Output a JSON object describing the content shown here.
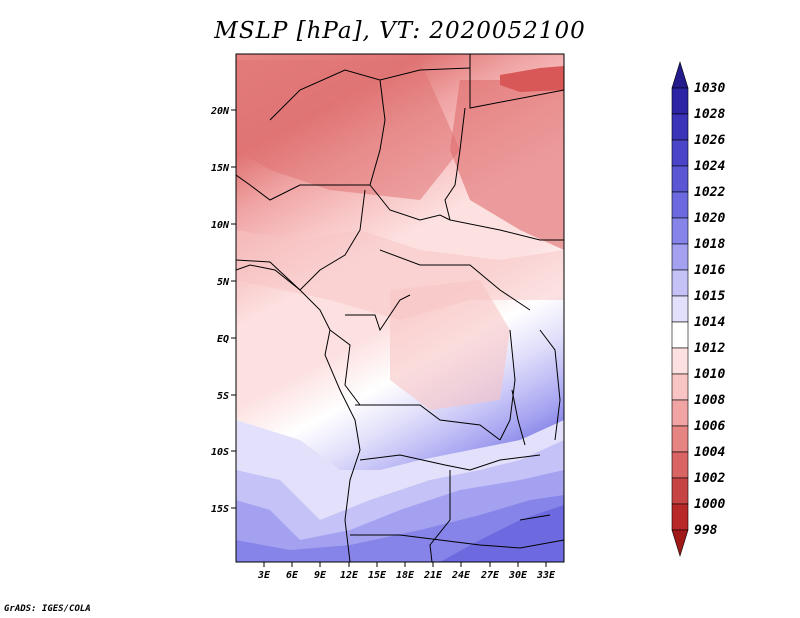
{
  "title": "MSLP [hPa], VT: 2020052100",
  "footer": "GrADS: IGES/COLA",
  "map": {
    "lat_labels": [
      "20N",
      "15N",
      "10N",
      "5N",
      "EQ",
      "5S",
      "10S",
      "15S"
    ],
    "lon_labels": [
      "3E",
      "6E",
      "9E",
      "12E",
      "15E",
      "18E",
      "21E",
      "24E",
      "27E",
      "30E",
      "33E"
    ]
  },
  "colorbar": {
    "levels": [
      "1030",
      "1028",
      "1026",
      "1024",
      "1022",
      "1020",
      "1018",
      "1016",
      "1015",
      "1014",
      "1012",
      "1010",
      "1008",
      "1006",
      "1004",
      "1002",
      "1000",
      "998"
    ],
    "colors": [
      "#241c8c",
      "#2c24a4",
      "#3c34b8",
      "#4a44c8",
      "#5a56d4",
      "#6c6ade",
      "#8684e8",
      "#a4a2f0",
      "#c4c2f6",
      "#e2e0fa",
      "#ffffff",
      "#fde0e0",
      "#f8c4c4",
      "#f0a4a4",
      "#e68484",
      "#d86464",
      "#c84444",
      "#b82828",
      "#a01818"
    ]
  }
}
